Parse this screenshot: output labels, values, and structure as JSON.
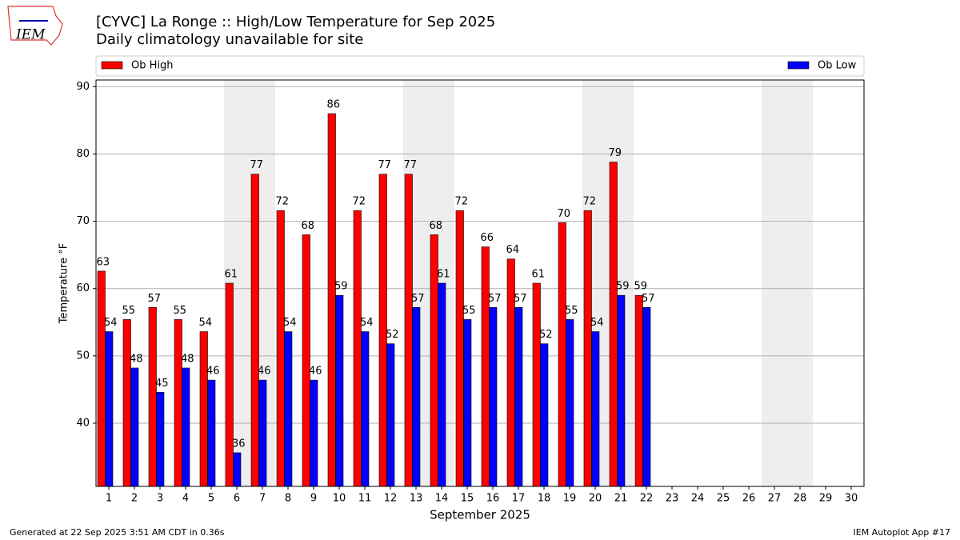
{
  "logo_text": "IEM",
  "chart_data": {
    "type": "bar",
    "title": "[CYVC] La Ronge :: High/Low Temperature for Sep 2025",
    "subtitle": "Daily climatology unavailable for site",
    "x_label": "September 2025",
    "y_label": "Temperature °F",
    "categories": [
      "1",
      "2",
      "3",
      "4",
      "5",
      "6",
      "7",
      "8",
      "9",
      "10",
      "11",
      "12",
      "13",
      "14",
      "15",
      "16",
      "17",
      "18",
      "19",
      "20",
      "21",
      "22",
      "23",
      "24",
      "25",
      "26",
      "27",
      "28",
      "29",
      "30"
    ],
    "series": [
      {
        "name": "Ob High",
        "color": "#ff0000",
        "values": [
          62.6,
          55.4,
          57.2,
          55.4,
          53.6,
          60.8,
          77.0,
          71.6,
          68.0,
          86.0,
          71.6,
          77.0,
          77.0,
          68.0,
          71.6,
          66.2,
          64.4,
          60.8,
          69.8,
          71.6,
          78.8,
          59.0,
          null,
          null,
          null,
          null,
          null,
          null,
          null,
          null
        ],
        "value_labels": [
          "63",
          "55",
          "57",
          "55",
          "54",
          "61",
          "77",
          "72",
          "68",
          "86",
          "72",
          "77",
          "77",
          "68",
          "72",
          "66",
          "64",
          "61",
          "70",
          "72",
          "79",
          "59",
          null,
          null,
          null,
          null,
          null,
          null,
          null,
          null
        ]
      },
      {
        "name": "Ob Low",
        "color": "#0000ff",
        "values": [
          53.6,
          48.2,
          44.6,
          48.2,
          46.4,
          35.6,
          46.4,
          53.6,
          46.4,
          59.0,
          53.6,
          51.8,
          57.2,
          60.8,
          55.4,
          57.2,
          57.2,
          51.8,
          55.4,
          53.6,
          59.0,
          57.2,
          null,
          null,
          null,
          null,
          null,
          null,
          null,
          null
        ],
        "value_labels": [
          "54",
          "48",
          "45",
          "48",
          "46",
          "36",
          "46",
          "54",
          "46",
          "59",
          "54",
          "52",
          "57",
          "61",
          "55",
          "57",
          "57",
          "52",
          "55",
          "54",
          "59",
          "57",
          null,
          null,
          null,
          null,
          null,
          null,
          null,
          null
        ]
      }
    ],
    "shaded_categories": [
      "6",
      "7",
      "13",
      "14",
      "20",
      "21",
      "27",
      "28"
    ],
    "ylim": [
      30.6,
      91
    ],
    "yticks": [
      40,
      50,
      60,
      70,
      80,
      90
    ],
    "grid": true,
    "footer_left": "Generated at 22 Sep 2025 3:51 AM CDT in 0.36s",
    "footer_right": "IEM Autoplot App #17"
  }
}
